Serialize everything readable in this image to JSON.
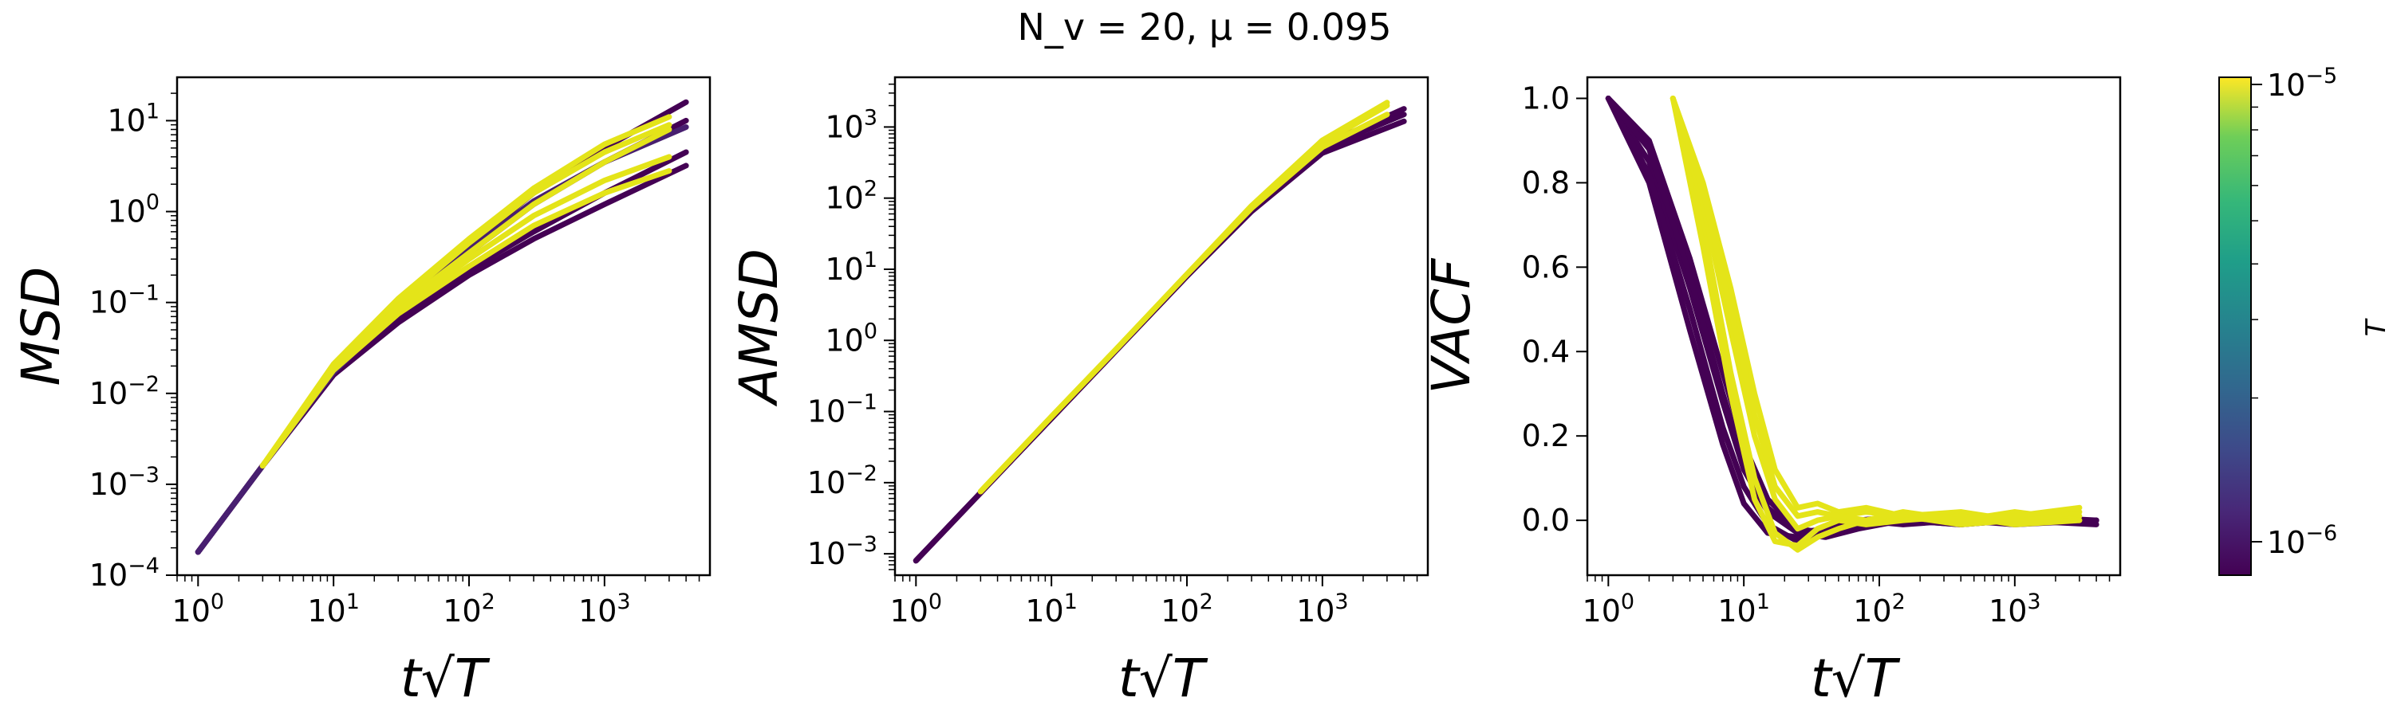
{
  "figure": {
    "title": "N_v = 20, μ = 0.095"
  },
  "colorbar": {
    "label": "T",
    "tick_high": "10",
    "tick_high_exp": "−5",
    "tick_low": "10",
    "tick_low_exp": "−6",
    "range": [
      8e-07,
      1.05e-05
    ],
    "scale": "log",
    "colormap": "viridis"
  },
  "chart_data": [
    {
      "type": "line",
      "ylabel": "MSD",
      "xlabel": "t√T",
      "xscale": "log",
      "yscale": "log",
      "xlim": [
        0.7,
        6000
      ],
      "ylim": [
        0.0001,
        30
      ],
      "xticks": [
        {
          "base": "10",
          "exp": "0"
        },
        {
          "base": "10",
          "exp": "1"
        },
        {
          "base": "10",
          "exp": "2"
        },
        {
          "base": "10",
          "exp": "3"
        }
      ],
      "yticks": [
        {
          "base": "10",
          "exp": "−4"
        },
        {
          "base": "10",
          "exp": "−3"
        },
        {
          "base": "10",
          "exp": "−2"
        },
        {
          "base": "10",
          "exp": "−1"
        },
        {
          "base": "10",
          "exp": "0"
        },
        {
          "base": "10",
          "exp": "1"
        }
      ],
      "series": [
        {
          "color": "#440154",
          "x": [
            1,
            3,
            10,
            30,
            100,
            300,
            1000,
            4000
          ],
          "y": [
            0.00018,
            0.0016,
            0.016,
            0.07,
            0.23,
            0.6,
            1.6,
            4.5
          ]
        },
        {
          "color": "#440154",
          "x": [
            1,
            3,
            10,
            30,
            100,
            300,
            1000,
            4000
          ],
          "y": [
            0.00018,
            0.0016,
            0.017,
            0.09,
            0.42,
            1.6,
            5,
            16
          ]
        },
        {
          "color": "#440154",
          "x": [
            1,
            3,
            10,
            30,
            100,
            300,
            1000,
            4000
          ],
          "y": [
            0.00018,
            0.0016,
            0.016,
            0.06,
            0.2,
            0.5,
            1.2,
            3.2
          ]
        },
        {
          "color": "#440154",
          "x": [
            1,
            3,
            10,
            30,
            100,
            300,
            1000,
            4000
          ],
          "y": [
            0.00018,
            0.0016,
            0.017,
            0.08,
            0.35,
            1.2,
            3.5,
            10
          ]
        },
        {
          "color": "#481f70",
          "x": [
            1,
            3,
            10,
            30,
            100,
            300,
            1000,
            4000
          ],
          "y": [
            0.00018,
            0.0016,
            0.017,
            0.085,
            0.38,
            1.3,
            3.5,
            8.5
          ]
        },
        {
          "color": "#e4e419",
          "x": [
            3,
            10,
            30,
            100,
            300,
            1000,
            3000
          ],
          "y": [
            0.0016,
            0.02,
            0.09,
            0.35,
            1.2,
            3.5,
            8
          ]
        },
        {
          "color": "#e4e419",
          "x": [
            3,
            10,
            30,
            100,
            300,
            1000,
            3000
          ],
          "y": [
            0.0016,
            0.018,
            0.075,
            0.25,
            0.7,
            1.6,
            2.8
          ]
        },
        {
          "color": "#e4e419",
          "x": [
            3,
            10,
            30,
            100,
            300,
            1000,
            3000
          ],
          "y": [
            0.0016,
            0.02,
            0.1,
            0.45,
            1.6,
            4.5,
            9
          ]
        },
        {
          "color": "#e4e419",
          "x": [
            3,
            10,
            30,
            100,
            300,
            1000,
            3000
          ],
          "y": [
            0.0016,
            0.019,
            0.08,
            0.3,
            0.9,
            2.2,
            4
          ]
        },
        {
          "color": "#e4e419",
          "x": [
            3,
            10,
            30,
            100,
            300,
            1000,
            3000
          ],
          "y": [
            0.0016,
            0.021,
            0.11,
            0.5,
            1.8,
            5.5,
            11
          ]
        }
      ]
    },
    {
      "type": "line",
      "ylabel": "AMSD",
      "xlabel": "t√T",
      "xscale": "log",
      "yscale": "log",
      "xlim": [
        0.7,
        6000
      ],
      "ylim": [
        0.0005,
        5000
      ],
      "xticks": [
        {
          "base": "10",
          "exp": "0"
        },
        {
          "base": "10",
          "exp": "1"
        },
        {
          "base": "10",
          "exp": "2"
        },
        {
          "base": "10",
          "exp": "3"
        }
      ],
      "yticks": [
        {
          "base": "10",
          "exp": "−3"
        },
        {
          "base": "10",
          "exp": "−2"
        },
        {
          "base": "10",
          "exp": "−1"
        },
        {
          "base": "10",
          "exp": "0"
        },
        {
          "base": "10",
          "exp": "1"
        },
        {
          "base": "10",
          "exp": "2"
        },
        {
          "base": "10",
          "exp": "3"
        }
      ],
      "series": [
        {
          "color": "#440154",
          "x": [
            1,
            3,
            10,
            30,
            100,
            300,
            1000,
            4000
          ],
          "y": [
            0.0008,
            0.0072,
            0.08,
            0.72,
            8,
            70,
            500,
            1500
          ]
        },
        {
          "color": "#440154",
          "x": [
            1,
            3,
            10,
            30,
            100,
            300,
            1000,
            4000
          ],
          "y": [
            0.0008,
            0.0072,
            0.08,
            0.72,
            8,
            65,
            430,
            1200
          ]
        },
        {
          "color": "#440154",
          "x": [
            1,
            3,
            10,
            30,
            100,
            300,
            1000,
            4000
          ],
          "y": [
            0.0008,
            0.0072,
            0.08,
            0.72,
            8,
            72,
            550,
            1800
          ]
        },
        {
          "color": "#e4e419",
          "x": [
            3,
            10,
            30,
            100,
            300,
            1000,
            3000
          ],
          "y": [
            0.0075,
            0.085,
            0.75,
            8.5,
            75,
            600,
            2000
          ]
        },
        {
          "color": "#e4e419",
          "x": [
            3,
            10,
            30,
            100,
            300,
            1000,
            3000
          ],
          "y": [
            0.0075,
            0.085,
            0.75,
            8.5,
            72,
            520,
            1500
          ]
        },
        {
          "color": "#e4e419",
          "x": [
            3,
            10,
            30,
            100,
            300,
            1000,
            3000
          ],
          "y": [
            0.0075,
            0.085,
            0.75,
            8.5,
            78,
            650,
            2200
          ]
        }
      ]
    },
    {
      "type": "line",
      "ylabel": "VACF",
      "xlabel": "t√T",
      "xscale": "log",
      "yscale": "linear",
      "xlim": [
        0.7,
        6000
      ],
      "ylim": [
        -0.13,
        1.05
      ],
      "xticks": [
        {
          "base": "10",
          "exp": "0"
        },
        {
          "base": "10",
          "exp": "1"
        },
        {
          "base": "10",
          "exp": "2"
        },
        {
          "base": "10",
          "exp": "3"
        }
      ],
      "yticks": [
        {
          "base": "1.0",
          "exp": ""
        },
        {
          "base": "0.8",
          "exp": ""
        },
        {
          "base": "0.6",
          "exp": ""
        },
        {
          "base": "0.4",
          "exp": ""
        },
        {
          "base": "0.2",
          "exp": ""
        },
        {
          "base": "0.0",
          "exp": ""
        }
      ],
      "series": [
        {
          "color": "#440154",
          "x": [
            1,
            2,
            4,
            7,
            10,
            15,
            25,
            40,
            70,
            150,
            400,
            1000,
            4000
          ],
          "y": [
            1,
            0.8,
            0.45,
            0.18,
            0.04,
            -0.03,
            -0.04,
            -0.03,
            -0.01,
            0,
            -0.01,
            0,
            0
          ]
        },
        {
          "color": "#440154",
          "x": [
            1,
            2,
            4,
            7,
            10,
            15,
            25,
            40,
            70,
            150,
            400,
            1000,
            4000
          ],
          "y": [
            1,
            0.85,
            0.55,
            0.28,
            0.12,
            0.02,
            -0.03,
            -0.02,
            0,
            -0.01,
            0,
            -0.01,
            0
          ]
        },
        {
          "color": "#440154",
          "x": [
            1,
            2,
            4,
            7,
            10,
            15,
            25,
            40,
            70,
            150,
            400,
            1000,
            4000
          ],
          "y": [
            1,
            0.9,
            0.62,
            0.35,
            0.18,
            0.05,
            -0.02,
            -0.03,
            -0.01,
            0,
            -0.01,
            0,
            0
          ]
        },
        {
          "color": "#440154",
          "x": [
            1,
            2,
            4,
            7,
            10,
            15,
            25,
            40,
            70,
            150,
            400,
            1000,
            4000
          ],
          "y": [
            1,
            0.82,
            0.5,
            0.22,
            0.08,
            -0.01,
            -0.05,
            -0.02,
            0,
            0.01,
            0,
            0,
            -0.01
          ]
        },
        {
          "color": "#440154",
          "x": [
            1,
            2,
            4,
            7,
            10,
            15,
            25,
            40,
            70,
            150,
            400,
            1000,
            4000
          ],
          "y": [
            1,
            0.88,
            0.58,
            0.3,
            0.14,
            0.03,
            -0.03,
            -0.04,
            -0.02,
            0,
            0,
            0.01,
            0
          ]
        },
        {
          "color": "#e4e419",
          "x": [
            3,
            5,
            8,
            12,
            17,
            25,
            35,
            50,
            80,
            150,
            400,
            1000,
            3000
          ],
          "y": [
            1,
            0.7,
            0.35,
            0.1,
            -0.03,
            -0.07,
            -0.04,
            -0.02,
            0,
            0.01,
            -0.01,
            0,
            0.01
          ]
        },
        {
          "color": "#e4e419",
          "x": [
            3,
            5,
            8,
            12,
            17,
            25,
            35,
            50,
            80,
            150,
            400,
            1000,
            3000
          ],
          "y": [
            1,
            0.75,
            0.45,
            0.2,
            0.05,
            -0.02,
            0,
            0.01,
            0.02,
            0.01,
            0,
            0.02,
            0
          ]
        },
        {
          "color": "#e4e419",
          "x": [
            3,
            5,
            8,
            12,
            17,
            25,
            35,
            50,
            80,
            150,
            400,
            1000,
            3000
          ],
          "y": [
            1,
            0.8,
            0.55,
            0.3,
            0.12,
            0.03,
            0.04,
            0.02,
            0.03,
            0.01,
            0.02,
            0,
            0.02
          ]
        },
        {
          "color": "#e4e419",
          "x": [
            3,
            5,
            8,
            12,
            17,
            25,
            35,
            50,
            80,
            150,
            400,
            1000,
            3000
          ],
          "y": [
            1,
            0.65,
            0.3,
            0.05,
            -0.05,
            -0.06,
            -0.02,
            0,
            -0.01,
            0,
            0.01,
            -0.01,
            0
          ]
        },
        {
          "color": "#e4e419",
          "x": [
            3,
            5,
            8,
            12,
            17,
            25,
            35,
            50,
            80,
            150,
            400,
            1000,
            3000
          ],
          "y": [
            1,
            0.78,
            0.5,
            0.25,
            0.08,
            0.01,
            0.02,
            0.01,
            0,
            0.02,
            0,
            0.01,
            0.03
          ]
        }
      ]
    }
  ]
}
